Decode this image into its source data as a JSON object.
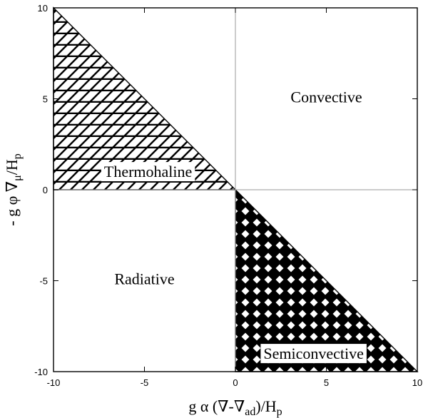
{
  "chart_data": {
    "type": "area",
    "title": "",
    "xlabel": {
      "main": "g α (∇-∇",
      "sub1": "ad",
      "mid": ")/H",
      "sub2": "p"
    },
    "ylabel": {
      "main": "- g φ ∇",
      "sub1": "μ",
      "mid": "/H",
      "sub2": "p"
    },
    "xlim": [
      -10,
      10
    ],
    "ylim": [
      -10,
      10
    ],
    "xticks": [
      -10,
      -5,
      0,
      5,
      10
    ],
    "yticks": [
      -10,
      -5,
      0,
      5,
      10
    ],
    "xtick_labels": [
      "-10",
      "-5",
      "0",
      "5",
      "10"
    ],
    "ytick_labels": [
      "-10",
      "-5",
      "0",
      "5",
      "10"
    ],
    "grid": false,
    "zero_lines": true,
    "regions": [
      {
        "label": "Thermohaline",
        "pattern": "hatched",
        "polygon": [
          [
            -10,
            10
          ],
          [
            -10,
            0
          ],
          [
            0,
            0
          ]
        ],
        "label_at": [
          -4.8,
          0.9
        ]
      },
      {
        "label": "Semiconvective",
        "pattern": "dotted",
        "polygon": [
          [
            0,
            0
          ],
          [
            0,
            -10
          ],
          [
            10,
            -10
          ]
        ],
        "label_at": [
          4.3,
          -9.1
        ]
      },
      {
        "label": "Convective",
        "pattern": "none",
        "label_at": [
          5.0,
          5.0
        ]
      },
      {
        "label": "Radiative",
        "pattern": "none",
        "label_at": [
          -5.0,
          -5.0
        ]
      }
    ]
  },
  "colors": {
    "ink": "#000000",
    "background": "#ffffff",
    "zero_line": "#999999"
  }
}
